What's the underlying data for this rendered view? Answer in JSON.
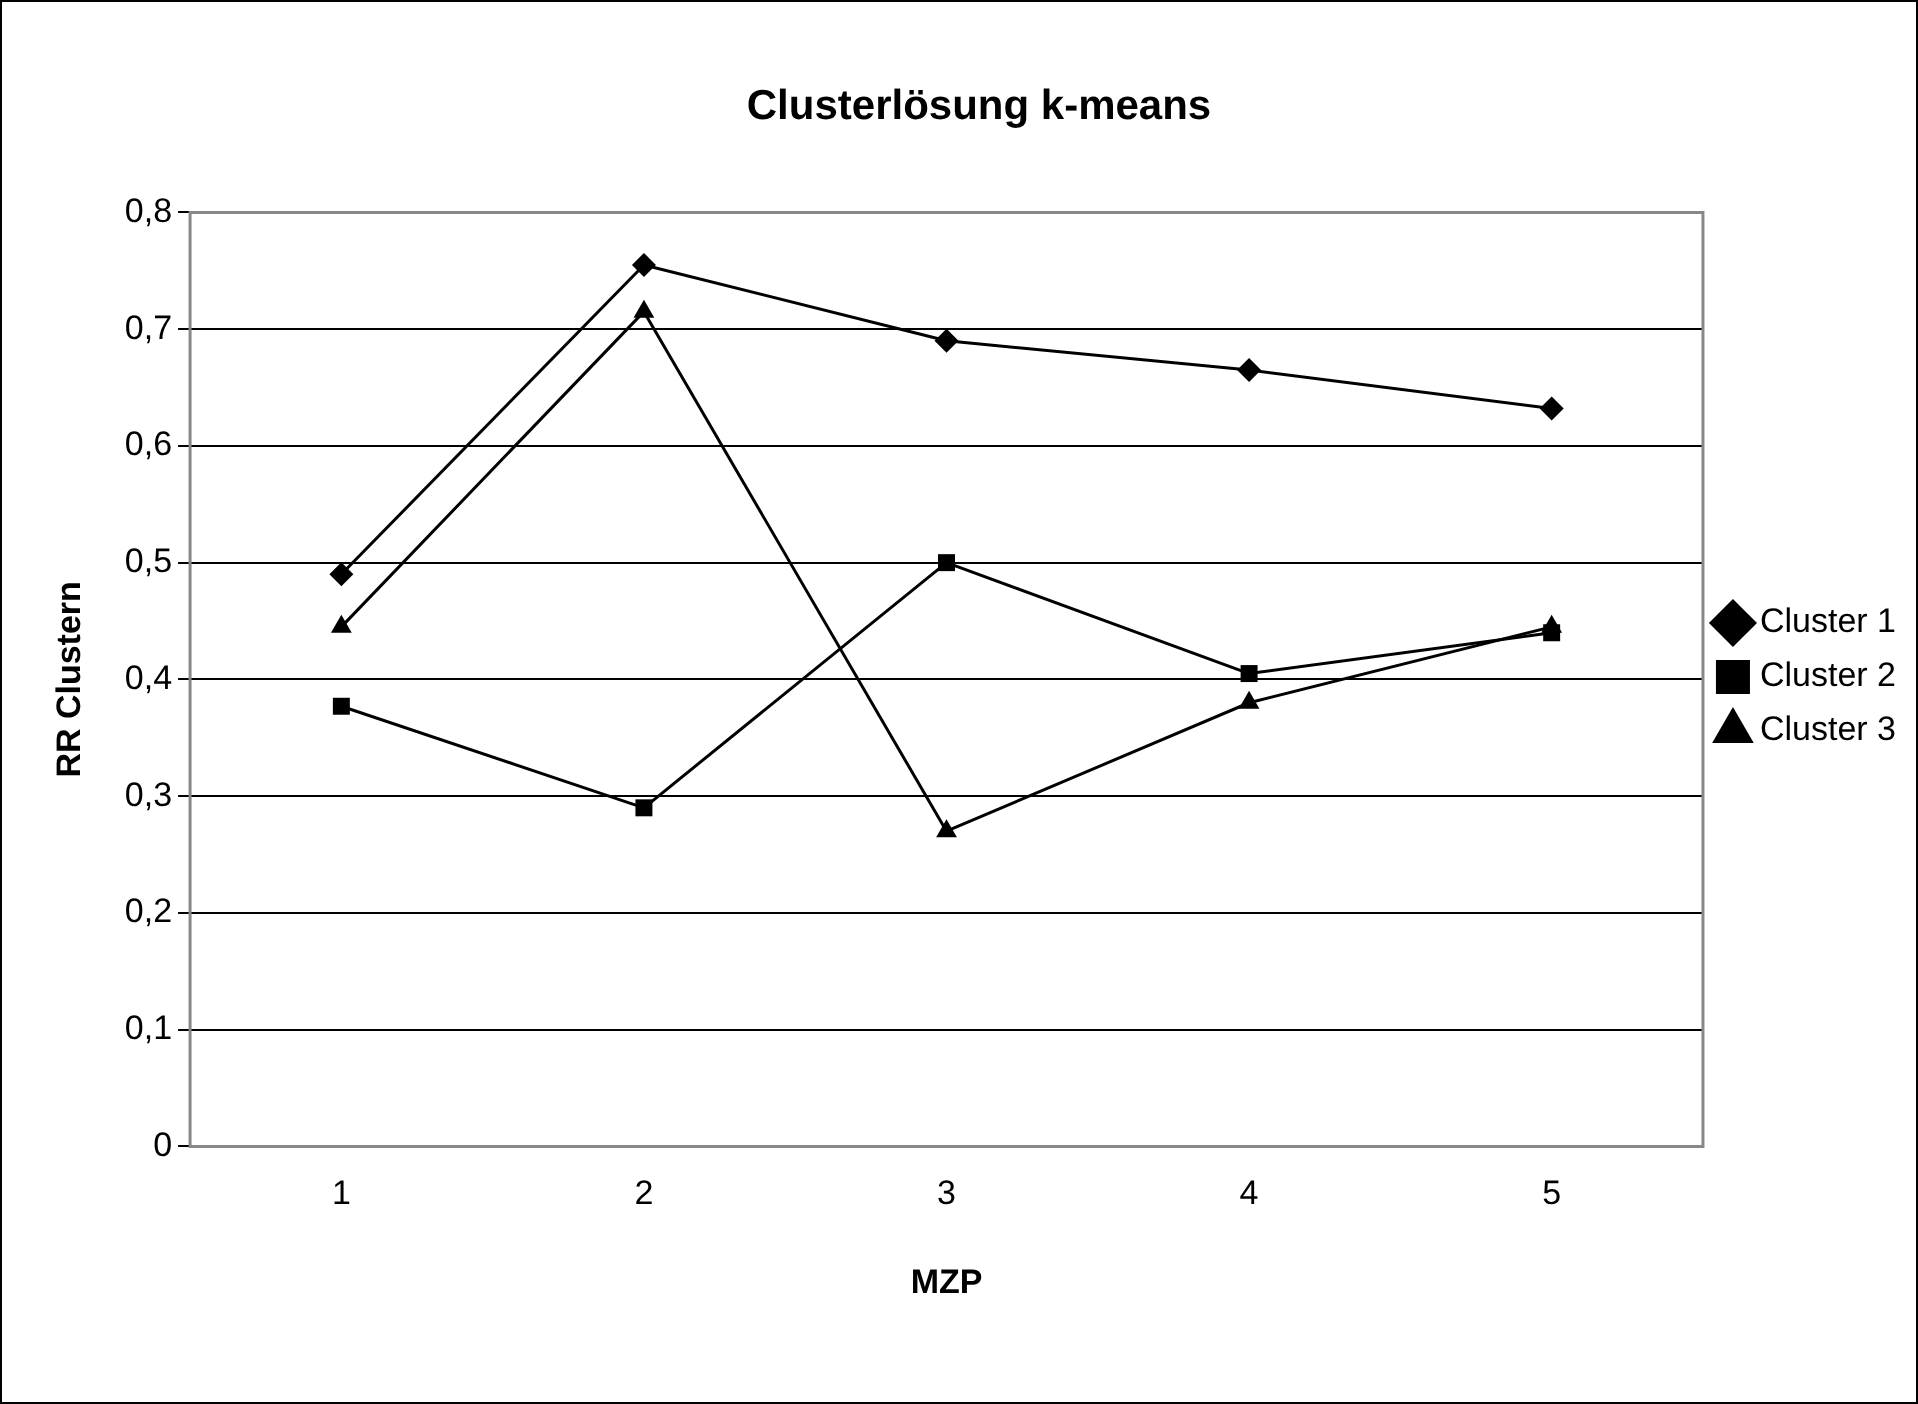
{
  "chart_data": {
    "type": "line",
    "title": "Clusterlösung k-means",
    "xlabel": "MZP",
    "ylabel": "RR Clustern",
    "categories": [
      "1",
      "2",
      "3",
      "4",
      "5"
    ],
    "series": [
      {
        "name": "Cluster 1",
        "color": "#000000",
        "marker": "diamond",
        "values": [
          0.49,
          0.755,
          0.69,
          0.665,
          0.632
        ]
      },
      {
        "name": "Cluster 2",
        "color": "#000000",
        "marker": "square",
        "values": [
          0.377,
          0.29,
          0.5,
          0.405,
          0.44
        ]
      },
      {
        "name": "Cluster 3",
        "color": "#000000",
        "marker": "triangle",
        "values": [
          0.445,
          0.715,
          0.27,
          0.38,
          0.445
        ]
      }
    ],
    "ylim": [
      0,
      0.8
    ],
    "yticks": [
      0,
      {
        "value": 0.1,
        "label": "0,1"
      },
      {
        "value": 0.2,
        "label": "0,2"
      },
      {
        "value": 0.3,
        "label": "0,3"
      },
      {
        "value": 0.4,
        "label": "0,4"
      },
      {
        "value": 0.5,
        "label": "0,5"
      },
      {
        "value": 0.6,
        "label": "0,6"
      },
      {
        "value": 0.7,
        "label": "0,7"
      },
      {
        "value": 0.8,
        "label": "0,8"
      }
    ],
    "grid": "y",
    "legend": "right",
    "line_style": "solid"
  }
}
